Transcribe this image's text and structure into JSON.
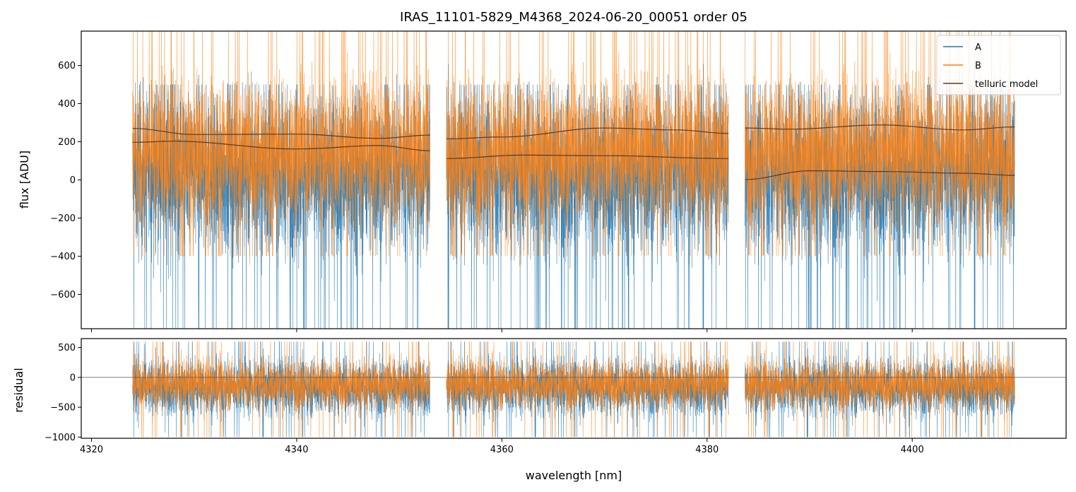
{
  "chart_data": [
    {
      "type": "line",
      "title": "IRAS_11101-5829_M4368_2024-06-20_00051  order 05",
      "ylabel": "flux [ADU]",
      "xlim": [
        4319,
        4415
      ],
      "ylim": [
        -780,
        780
      ],
      "xticks": [
        4320,
        4340,
        4360,
        4380,
        4400
      ],
      "yticks": [
        -600,
        -400,
        -200,
        0,
        200,
        400,
        600
      ],
      "ytick_labels": [
        "−600",
        "−400",
        "−200",
        "0",
        "200",
        "400",
        "600"
      ],
      "legend_position": "top-right",
      "segments": [
        [
          4324.0,
          4353.0
        ],
        [
          4354.6,
          4382.1
        ],
        [
          4383.7,
          4410.0
        ]
      ],
      "series": [
        {
          "name": "A",
          "color": "#1f77b4",
          "noise_center": 30,
          "noise_amplitude": 380,
          "lower_extreme": -800
        },
        {
          "name": "B",
          "color": "#ff7f0e",
          "noise_center": 150,
          "noise_amplitude": 340,
          "upper_extreme": 800
        },
        {
          "name": "telluric model",
          "color": "#5a3a28",
          "model_curves": [
            [
              [
                4324,
                270
              ],
              [
                4330,
                238
              ],
              [
                4340,
                240
              ],
              [
                4348,
                218
              ],
              [
                4353,
                235
              ]
            ],
            [
              [
                4324,
                197
              ],
              [
                4328,
                203
              ],
              [
                4340,
                162
              ],
              [
                4348,
                180
              ],
              [
                4353,
                153
              ]
            ],
            [
              [
                4354.6,
                215
              ],
              [
                4360,
                225
              ],
              [
                4370,
                272
              ],
              [
                4377,
                262
              ],
              [
                4382.1,
                244
              ]
            ],
            [
              [
                4354.6,
                112
              ],
              [
                4362,
                130
              ],
              [
                4370,
                127
              ],
              [
                4382.1,
                112
              ]
            ],
            [
              [
                4383.7,
                272
              ],
              [
                4388,
                266
              ],
              [
                4397,
                288
              ],
              [
                4405,
                262
              ],
              [
                4410,
                278
              ]
            ],
            [
              [
                4383.7,
                2
              ],
              [
                4390,
                48
              ],
              [
                4397,
                44
              ],
              [
                4405,
                35
              ],
              [
                4410,
                24
              ]
            ]
          ]
        }
      ]
    },
    {
      "type": "line",
      "xlabel": "wavelength [nm]",
      "ylabel": "residual",
      "xlim": [
        4319,
        4415
      ],
      "ylim": [
        -1020,
        650
      ],
      "xticks": [
        4320,
        4340,
        4360,
        4380,
        4400
      ],
      "yticks": [
        -1000,
        -500,
        0,
        500
      ],
      "ytick_labels": [
        "−1000",
        "−500",
        "0",
        "500"
      ],
      "zero_line": 0,
      "segments": [
        [
          4324.0,
          4353.0
        ],
        [
          4354.6,
          4382.1
        ],
        [
          4383.7,
          4410.0
        ]
      ],
      "series": [
        {
          "name": "A",
          "color": "#1f77b4",
          "noise_center": -170,
          "noise_amplitude": 430
        },
        {
          "name": "B",
          "color": "#ff7f0e",
          "noise_center": -110,
          "noise_amplitude": 380
        }
      ]
    }
  ]
}
